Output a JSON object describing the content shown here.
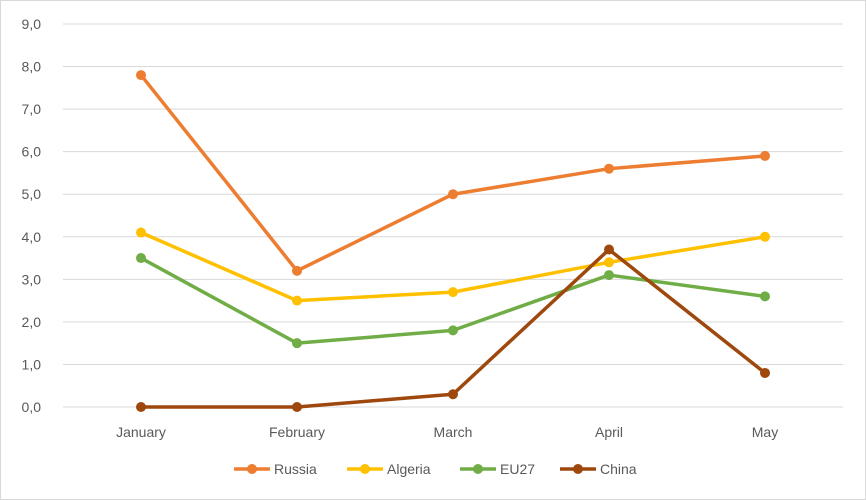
{
  "chart_data": {
    "type": "line",
    "title": "",
    "xlabel": "",
    "ylabel": "",
    "categories": [
      "January",
      "February",
      "March",
      "April",
      "May"
    ],
    "ylim": [
      0,
      9
    ],
    "ytick_labels": [
      "0,0",
      "1,0",
      "2,0",
      "3,0",
      "4,0",
      "5,0",
      "6,0",
      "7,0",
      "8,0",
      "9,0"
    ],
    "grid": true,
    "legend_position": "bottom",
    "series": [
      {
        "name": "Russia",
        "color": "#ED7D31",
        "values": [
          7.8,
          3.2,
          5.0,
          5.6,
          5.9
        ]
      },
      {
        "name": "Algeria",
        "color": "#FFC000",
        "values": [
          4.1,
          2.5,
          2.7,
          3.4,
          4.0
        ]
      },
      {
        "name": "EU27",
        "color": "#70AD47",
        "values": [
          3.5,
          1.5,
          1.8,
          3.1,
          2.6
        ]
      },
      {
        "name": "China",
        "color": "#9E480E",
        "values": [
          0.0,
          0.0,
          0.3,
          3.7,
          0.8
        ]
      }
    ]
  }
}
